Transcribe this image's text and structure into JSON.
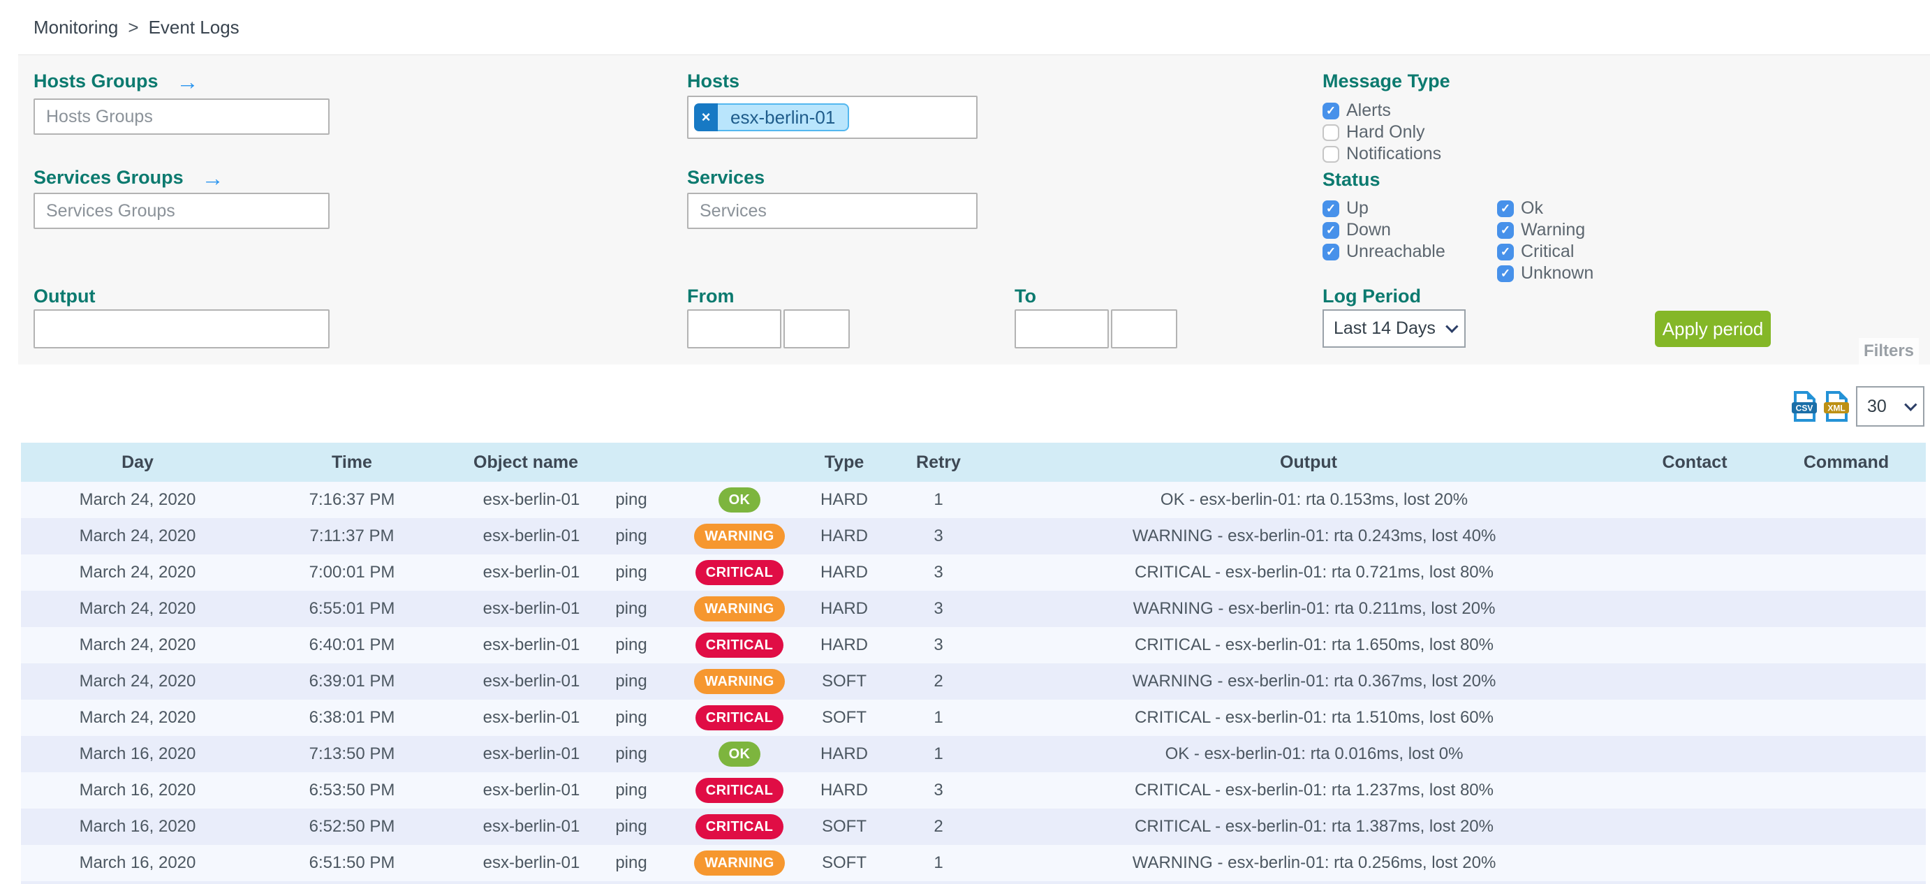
{
  "breadcrumb": {
    "items": [
      "Monitoring",
      "Event Logs"
    ],
    "separator": ">"
  },
  "icons": {
    "arrow_right": "→",
    "remove": "×",
    "check": "✓",
    "csv_file_icon": "csv-export-icon",
    "xml_file_icon": "xml-export-icon"
  },
  "colors": {
    "label_teal": "#0c7a6f",
    "checkbox_blue": "#4791ea",
    "apply_green": "#84b727",
    "ok_green": "#7db53e",
    "warning_orange": "#f6972f",
    "critical_red": "#e00d45",
    "table_header_bg": "#d3ecf6",
    "chip_bg": "#b9e5fc",
    "chip_remove_bg": "#1779c4"
  },
  "filters": {
    "hosts_groups": {
      "label": "Hosts Groups",
      "placeholder": "Hosts Groups",
      "value": ""
    },
    "services_groups": {
      "label": "Services Groups",
      "placeholder": "Services Groups",
      "value": ""
    },
    "hosts": {
      "label": "Hosts",
      "chip": "esx-berlin-01"
    },
    "services": {
      "label": "Services",
      "placeholder": "Services",
      "value": ""
    },
    "output": {
      "label": "Output",
      "value": ""
    },
    "from": {
      "label": "From",
      "date_value": "",
      "time_value": ""
    },
    "to": {
      "label": "To",
      "date_value": "",
      "time_value": ""
    },
    "message_type": {
      "label": "Message Type",
      "options": [
        {
          "label": "Alerts",
          "checked": true
        },
        {
          "label": "Hard Only",
          "checked": false
        },
        {
          "label": "Notifications",
          "checked": false
        }
      ]
    },
    "status": {
      "label": "Status",
      "col1": [
        {
          "label": "Up",
          "checked": true
        },
        {
          "label": "Down",
          "checked": true
        },
        {
          "label": "Unreachable",
          "checked": true
        }
      ],
      "col2": [
        {
          "label": "Ok",
          "checked": true
        },
        {
          "label": "Warning",
          "checked": true
        },
        {
          "label": "Critical",
          "checked": true
        },
        {
          "label": "Unknown",
          "checked": true
        }
      ]
    },
    "log_period": {
      "label": "Log Period",
      "value": "Last 14 Days"
    },
    "apply_label": "Apply period",
    "filters_tab": "Filters"
  },
  "export": {
    "csv_label": "CSV",
    "xml_label": "XML",
    "page_size": "30"
  },
  "table": {
    "headers": [
      "Day",
      "Time",
      "Object name",
      "",
      "",
      "Type",
      "Retry",
      "Output",
      "Contact",
      "Command"
    ],
    "rows": [
      {
        "day": "March 24, 2020",
        "time": "7:16:37 PM",
        "object": "esx-berlin-01",
        "service": "ping",
        "status": "OK",
        "type": "HARD",
        "retry": "1",
        "output": "OK - esx-berlin-01: rta 0.153ms, lost 20%",
        "contact": "",
        "command": ""
      },
      {
        "day": "March 24, 2020",
        "time": "7:11:37 PM",
        "object": "esx-berlin-01",
        "service": "ping",
        "status": "WARNING",
        "type": "HARD",
        "retry": "3",
        "output": "WARNING - esx-berlin-01: rta 0.243ms, lost 40%",
        "contact": "",
        "command": ""
      },
      {
        "day": "March 24, 2020",
        "time": "7:00:01 PM",
        "object": "esx-berlin-01",
        "service": "ping",
        "status": "CRITICAL",
        "type": "HARD",
        "retry": "3",
        "output": "CRITICAL - esx-berlin-01: rta 0.721ms, lost 80%",
        "contact": "",
        "command": ""
      },
      {
        "day": "March 24, 2020",
        "time": "6:55:01 PM",
        "object": "esx-berlin-01",
        "service": "ping",
        "status": "WARNING",
        "type": "HARD",
        "retry": "3",
        "output": "WARNING - esx-berlin-01: rta 0.211ms, lost 20%",
        "contact": "",
        "command": ""
      },
      {
        "day": "March 24, 2020",
        "time": "6:40:01 PM",
        "object": "esx-berlin-01",
        "service": "ping",
        "status": "CRITICAL",
        "type": "HARD",
        "retry": "3",
        "output": "CRITICAL - esx-berlin-01: rta 1.650ms, lost 80%",
        "contact": "",
        "command": ""
      },
      {
        "day": "March 24, 2020",
        "time": "6:39:01 PM",
        "object": "esx-berlin-01",
        "service": "ping",
        "status": "WARNING",
        "type": "SOFT",
        "retry": "2",
        "output": "WARNING - esx-berlin-01: rta 0.367ms, lost 20%",
        "contact": "",
        "command": ""
      },
      {
        "day": "March 24, 2020",
        "time": "6:38:01 PM",
        "object": "esx-berlin-01",
        "service": "ping",
        "status": "CRITICAL",
        "type": "SOFT",
        "retry": "1",
        "output": "CRITICAL - esx-berlin-01: rta 1.510ms, lost 60%",
        "contact": "",
        "command": ""
      },
      {
        "day": "March 16, 2020",
        "time": "7:13:50 PM",
        "object": "esx-berlin-01",
        "service": "ping",
        "status": "OK",
        "type": "HARD",
        "retry": "1",
        "output": "OK - esx-berlin-01: rta 0.016ms, lost 0%",
        "contact": "",
        "command": ""
      },
      {
        "day": "March 16, 2020",
        "time": "6:53:50 PM",
        "object": "esx-berlin-01",
        "service": "ping",
        "status": "CRITICAL",
        "type": "HARD",
        "retry": "3",
        "output": "CRITICAL - esx-berlin-01: rta 1.237ms, lost 80%",
        "contact": "",
        "command": ""
      },
      {
        "day": "March 16, 2020",
        "time": "6:52:50 PM",
        "object": "esx-berlin-01",
        "service": "ping",
        "status": "CRITICAL",
        "type": "SOFT",
        "retry": "2",
        "output": "CRITICAL - esx-berlin-01: rta 1.387ms, lost 20%",
        "contact": "",
        "command": ""
      },
      {
        "day": "March 16, 2020",
        "time": "6:51:50 PM",
        "object": "esx-berlin-01",
        "service": "ping",
        "status": "WARNING",
        "type": "SOFT",
        "retry": "1",
        "output": "WARNING - esx-berlin-01: rta 0.256ms, lost 20%",
        "contact": "",
        "command": ""
      }
    ]
  }
}
